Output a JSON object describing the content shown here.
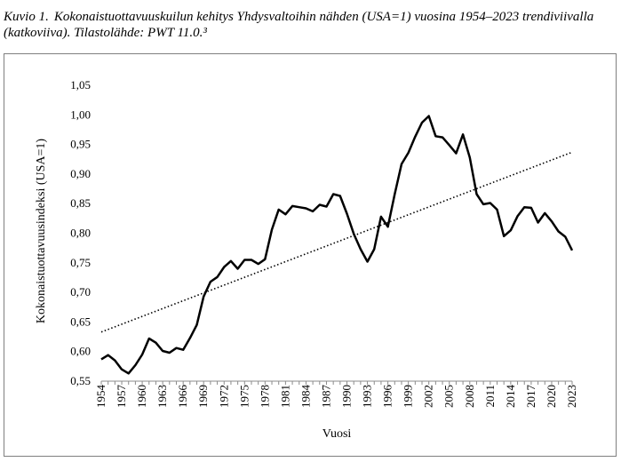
{
  "caption": {
    "label": "Kuvio 1.",
    "text": "Kokonaistuottavuuskuilun kehitys Yhdysvaltoihin nähden (USA=1) vuosina 1954–2023 trendiviivalla (katkoviiva). Tilastolähde: PWT 11.0.³"
  },
  "chart_data": {
    "type": "line",
    "title": "",
    "xlabel": "Vuosi",
    "ylabel": "Kokonaistuottavuusindeksi   (USA=1)",
    "ylim": [
      0.55,
      1.05
    ],
    "yticks": [
      "0,55",
      "0,60",
      "0,65",
      "0,70",
      "0,75",
      "0,80",
      "0,85",
      "0,90",
      "0,95",
      "1,00",
      "1,05"
    ],
    "xticks": [
      "1954",
      "1957",
      "1960",
      "1963",
      "1966",
      "1969",
      "1972",
      "1975",
      "1978",
      "1981",
      "1984",
      "1987",
      "1990",
      "1993",
      "1996",
      "1999",
      "2002",
      "2005",
      "2008",
      "2011",
      "2014",
      "2017",
      "2020",
      "2023"
    ],
    "grid": false,
    "series": [
      {
        "style": "solid",
        "x": [
          1954,
          1955,
          1956,
          1957,
          1958,
          1959,
          1960,
          1961,
          1962,
          1963,
          1964,
          1965,
          1966,
          1967,
          1968,
          1969,
          1970,
          1971,
          1972,
          1973,
          1974,
          1975,
          1976,
          1977,
          1978,
          1979,
          1980,
          1981,
          1982,
          1983,
          1984,
          1985,
          1986,
          1987,
          1988,
          1989,
          1990,
          1991,
          1992,
          1993,
          1994,
          1995,
          1996,
          1997,
          1998,
          1999,
          2000,
          2001,
          2002,
          2003,
          2004,
          2005,
          2006,
          2007,
          2008,
          2009,
          2010,
          2011,
          2012,
          2013,
          2014,
          2015,
          2016,
          2017,
          2018,
          2019,
          2020,
          2021,
          2022,
          2023
        ],
        "values": [
          0.587,
          0.594,
          0.585,
          0.57,
          0.563,
          0.577,
          0.595,
          0.622,
          0.615,
          0.601,
          0.598,
          0.606,
          0.603,
          0.623,
          0.645,
          0.693,
          0.718,
          0.726,
          0.743,
          0.753,
          0.74,
          0.755,
          0.755,
          0.748,
          0.756,
          0.806,
          0.84,
          0.832,
          0.846,
          0.844,
          0.842,
          0.837,
          0.848,
          0.845,
          0.866,
          0.863,
          0.833,
          0.799,
          0.773,
          0.752,
          0.773,
          0.828,
          0.811,
          0.866,
          0.917,
          0.936,
          0.963,
          0.987,
          0.998,
          0.964,
          0.962,
          0.949,
          0.935,
          0.967,
          0.928,
          0.866,
          0.849,
          0.851,
          0.84,
          0.795,
          0.805,
          0.829,
          0.844,
          0.843,
          0.818,
          0.834,
          0.82,
          0.803,
          0.794,
          0.771
        ]
      },
      {
        "style": "dotted",
        "x": [
          1954,
          2023
        ],
        "values": [
          0.633,
          0.937
        ]
      }
    ]
  }
}
